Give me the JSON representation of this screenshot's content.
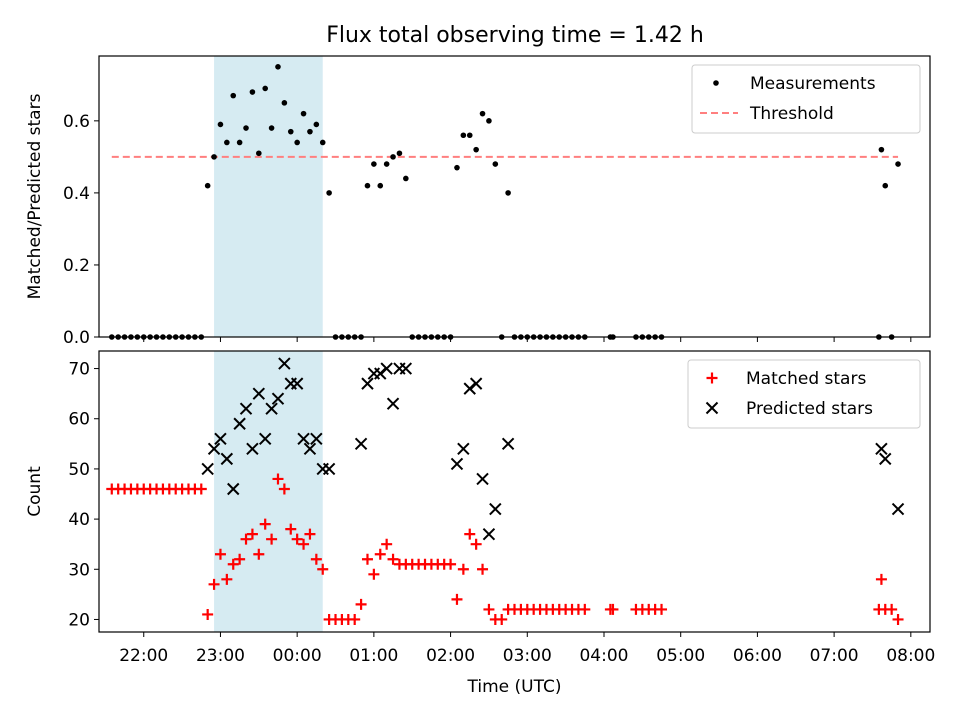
{
  "title": "Flux total observing time = 1.42 h",
  "colors": {
    "highlight": "#add8e6",
    "threshold": "#ff7f7f",
    "measurement": "#000000",
    "matched": "#ff0000",
    "predicted": "#000000"
  },
  "chart_data": [
    {
      "type": "scatter",
      "ylabel": "Matched/Predicted stars",
      "xlim": [
        "21:25",
        "08:15"
      ],
      "ylim": [
        0,
        0.78
      ],
      "yticks": [
        0.0,
        0.2,
        0.4,
        0.6
      ],
      "ytick_labels": [
        "0.0",
        "0.2",
        "0.4",
        "0.6"
      ],
      "grid": false,
      "legend_position": "top-right",
      "highlight_span": [
        "22:55",
        "00:20"
      ],
      "legend": [
        {
          "label": "Measurements",
          "marker": "dot"
        },
        {
          "label": "Threshold",
          "marker": "dashed-line"
        }
      ],
      "threshold": {
        "name": "Threshold",
        "y": 0.5,
        "x_start": "21:35",
        "x_end": "07:50"
      },
      "series": [
        {
          "name": "Measurements",
          "marker": "dot",
          "x": [
            "21:35",
            "21:40",
            "21:45",
            "21:50",
            "21:55",
            "22:00",
            "22:05",
            "22:10",
            "22:15",
            "22:20",
            "22:25",
            "22:30",
            "22:35",
            "22:40",
            "22:45",
            "22:50",
            "22:55",
            "23:00",
            "23:05",
            "23:10",
            "23:15",
            "23:20",
            "23:25",
            "23:30",
            "23:35",
            "23:40",
            "23:45",
            "23:50",
            "23:55",
            "00:00",
            "00:05",
            "00:10",
            "00:15",
            "00:20",
            "00:25",
            "00:30",
            "00:35",
            "00:40",
            "00:45",
            "00:50",
            "00:55",
            "01:00",
            "01:05",
            "01:10",
            "01:15",
            "01:20",
            "01:25",
            "01:30",
            "01:35",
            "01:40",
            "01:45",
            "01:50",
            "01:55",
            "02:00",
            "02:05",
            "02:10",
            "02:15",
            "02:20",
            "02:25",
            "02:30",
            "02:35",
            "02:40",
            "02:45",
            "02:50",
            "02:55",
            "03:00",
            "03:05",
            "03:10",
            "03:15",
            "03:20",
            "03:25",
            "03:30",
            "03:35",
            "03:40",
            "03:45",
            "04:05",
            "04:07",
            "04:25",
            "04:30",
            "04:35",
            "04:40",
            "04:45",
            "07:35",
            "07:37",
            "07:40",
            "07:45",
            "07:50"
          ],
          "y": [
            0,
            0,
            0,
            0,
            0,
            0,
            0,
            0,
            0,
            0,
            0,
            0,
            0,
            0,
            0,
            0.42,
            0.5,
            0.59,
            0.54,
            0.67,
            0.54,
            0.58,
            0.68,
            0.51,
            0.69,
            0.58,
            0.75,
            0.65,
            0.57,
            0.54,
            0.62,
            0.57,
            0.59,
            0.54,
            0.4,
            0,
            0,
            0,
            0,
            0,
            0.42,
            0.48,
            0.42,
            0.48,
            0.5,
            0.51,
            0.44,
            0,
            0,
            0,
            0,
            0,
            0,
            0,
            0.47,
            0.56,
            0.56,
            0.52,
            0.62,
            0.6,
            0.48,
            0,
            0.4,
            0,
            0,
            0,
            0,
            0,
            0,
            0,
            0,
            0,
            0,
            0,
            0,
            0,
            0,
            0,
            0,
            0,
            0,
            0,
            0,
            0.52,
            0.42,
            0,
            0.48
          ]
        }
      ]
    },
    {
      "type": "scatter",
      "xlabel": "Time (UTC)",
      "ylabel": "Count",
      "xlim": [
        "21:25",
        "08:15"
      ],
      "ylim": [
        17.5,
        73.5
      ],
      "yticks": [
        20,
        30,
        40,
        50,
        60,
        70
      ],
      "ytick_labels": [
        "20",
        "30",
        "40",
        "50",
        "60",
        "70"
      ],
      "xticks": [
        "22:00",
        "23:00",
        "00:00",
        "01:00",
        "02:00",
        "03:00",
        "04:00",
        "05:00",
        "06:00",
        "07:00",
        "08:00"
      ],
      "grid": false,
      "legend_position": "top-right",
      "highlight_span": [
        "22:55",
        "00:20"
      ],
      "legend": [
        {
          "label": "Matched stars",
          "marker": "plus"
        },
        {
          "label": "Predicted stars",
          "marker": "x"
        }
      ],
      "series": [
        {
          "name": "Matched stars",
          "marker": "plus",
          "x": [
            "21:35",
            "21:40",
            "21:45",
            "21:50",
            "21:55",
            "22:00",
            "22:05",
            "22:10",
            "22:15",
            "22:20",
            "22:25",
            "22:30",
            "22:35",
            "22:40",
            "22:45",
            "22:50",
            "22:55",
            "23:00",
            "23:05",
            "23:10",
            "23:15",
            "23:20",
            "23:25",
            "23:30",
            "23:35",
            "23:40",
            "23:45",
            "23:50",
            "23:55",
            "00:00",
            "00:05",
            "00:10",
            "00:15",
            "00:20",
            "00:25",
            "00:30",
            "00:35",
            "00:40",
            "00:45",
            "00:50",
            "00:55",
            "01:00",
            "01:05",
            "01:10",
            "01:15",
            "01:20",
            "01:25",
            "01:30",
            "01:35",
            "01:40",
            "01:45",
            "01:50",
            "01:55",
            "02:00",
            "02:05",
            "02:10",
            "02:15",
            "02:20",
            "02:25",
            "02:30",
            "02:35",
            "02:40",
            "02:45",
            "02:50",
            "02:55",
            "03:00",
            "03:05",
            "03:10",
            "03:15",
            "03:20",
            "03:25",
            "03:30",
            "03:35",
            "03:40",
            "03:45",
            "04:05",
            "04:07",
            "04:25",
            "04:30",
            "04:35",
            "04:40",
            "04:45",
            "07:35",
            "07:37",
            "07:40",
            "07:45",
            "07:50"
          ],
          "y": [
            46,
            46,
            46,
            46,
            46,
            46,
            46,
            46,
            46,
            46,
            46,
            46,
            46,
            46,
            46,
            21,
            27,
            33,
            28,
            31,
            32,
            36,
            37,
            33,
            39,
            36,
            48,
            46,
            38,
            36,
            35,
            37,
            32,
            30,
            20,
            20,
            20,
            20,
            20,
            23,
            32,
            29,
            33,
            35,
            32,
            31,
            31,
            31,
            31,
            31,
            31,
            31,
            31,
            31,
            24,
            30,
            37,
            35,
            30,
            22,
            20,
            20,
            22,
            22,
            22,
            22,
            22,
            22,
            22,
            22,
            22,
            22,
            22,
            22,
            22,
            22,
            22,
            22,
            22,
            22,
            22,
            22,
            22,
            28,
            22,
            22,
            20
          ]
        },
        {
          "name": "Predicted stars",
          "marker": "x",
          "x": [
            "22:50",
            "22:55",
            "23:00",
            "23:05",
            "23:10",
            "23:15",
            "23:20",
            "23:25",
            "23:30",
            "23:35",
            "23:40",
            "23:45",
            "23:50",
            "23:55",
            "00:00",
            "00:05",
            "00:10",
            "00:15",
            "00:20",
            "00:25",
            "00:50",
            "00:55",
            "01:00",
            "01:05",
            "01:10",
            "01:15",
            "01:20",
            "01:25",
            "02:05",
            "02:10",
            "02:15",
            "02:20",
            "02:25",
            "02:30",
            "02:35",
            "02:45",
            "07:37",
            "07:40",
            "07:50"
          ],
          "y": [
            50,
            54,
            56,
            52,
            46,
            59,
            62,
            54,
            65,
            56,
            62,
            64,
            71,
            67,
            67,
            56,
            54,
            56,
            50,
            50,
            55,
            67,
            69,
            69,
            70,
            63,
            70,
            70,
            51,
            54,
            66,
            67,
            48,
            37,
            42,
            55,
            54,
            52,
            42
          ]
        }
      ]
    }
  ]
}
